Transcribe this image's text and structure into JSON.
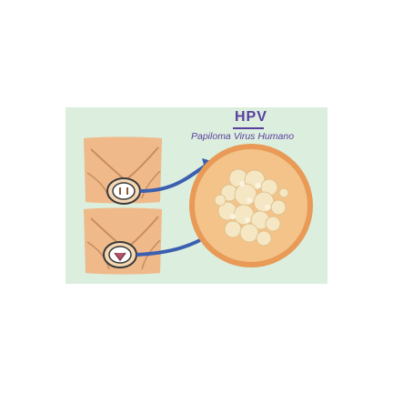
{
  "title": "HPV",
  "subtitle": "Papiloma Virus Humano",
  "colors": {
    "panel_background": "#dceedd",
    "title_text": "#5a3fa0",
    "arrow": "#3a5fb0",
    "skin": "#f3c38a",
    "lesion": "#f6e7c4"
  },
  "illustrations": [
    {
      "icon": "male-pelvis-illustration"
    },
    {
      "icon": "female-pelvis-illustration"
    },
    {
      "icon": "magnified-wart-circle"
    }
  ]
}
